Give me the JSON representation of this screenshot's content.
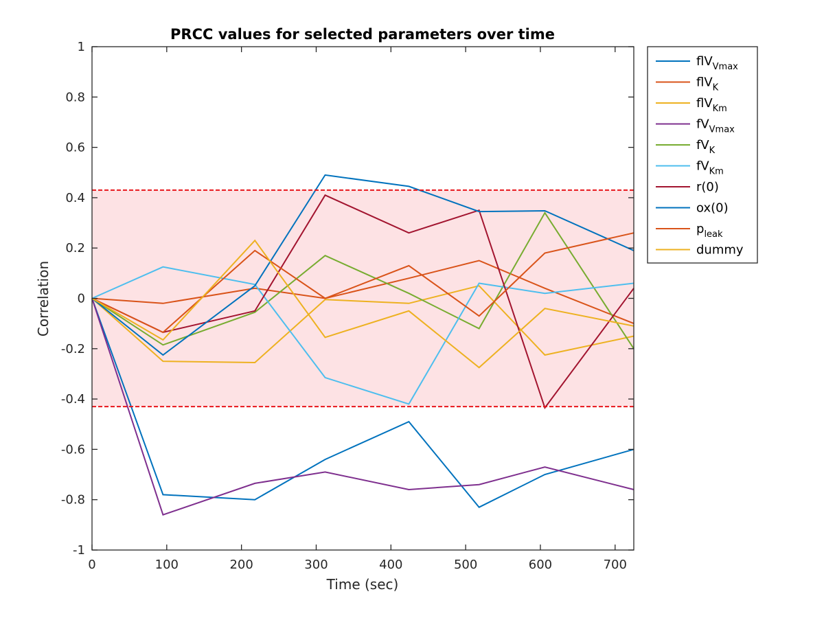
{
  "chart_data": {
    "type": "line",
    "title": "PRCC values for selected parameters over time",
    "xlabel": "Time (sec)",
    "ylabel": "Correlation",
    "xlim": [
      0,
      725
    ],
    "ylim": [
      -1,
      1
    ],
    "xticks": [
      0,
      100,
      200,
      300,
      400,
      500,
      600,
      700
    ],
    "yticks": [
      -1,
      -0.8,
      -0.6,
      -0.4,
      -0.2,
      0,
      0.2,
      0.4,
      0.6,
      0.8,
      1
    ],
    "xtick_labels": [
      "0",
      "100",
      "200",
      "300",
      "400",
      "500",
      "600",
      "700"
    ],
    "ytick_labels": [
      "-1",
      "-0.8",
      "-0.6",
      "-0.4",
      "-0.2",
      "0",
      "0.2",
      "0.4",
      "0.6",
      "0.8",
      "1"
    ],
    "x": [
      0,
      95,
      218,
      312,
      424,
      518,
      606,
      725
    ],
    "significance_band": {
      "lower": -0.43,
      "upper": 0.43,
      "fill_color": "#fde2e4",
      "line_color": "#e8161b"
    },
    "legend_position": "outside-top-right",
    "grid": false,
    "series": [
      {
        "name": "flV",
        "sub": "Vmax",
        "color": "#0072bd",
        "values": [
          0,
          -0.78,
          -0.8,
          -0.64,
          -0.49,
          -0.83,
          -0.7,
          -0.6
        ]
      },
      {
        "name": "flV",
        "sub": "K",
        "color": "#d95319",
        "values": [
          0,
          -0.02,
          0.04,
          0.0,
          0.08,
          0.15,
          0.04,
          -0.1
        ]
      },
      {
        "name": "flV",
        "sub": "Km",
        "color": "#edb120",
        "values": [
          0,
          -0.25,
          -0.255,
          -0.005,
          -0.02,
          0.05,
          -0.225,
          -0.15
        ]
      },
      {
        "name": "fV",
        "sub": "Vmax",
        "color": "#7e2f8e",
        "values": [
          0,
          -0.86,
          -0.735,
          -0.69,
          -0.76,
          -0.74,
          -0.67,
          -0.76
        ]
      },
      {
        "name": "fV",
        "sub": "K",
        "color": "#77ac30",
        "values": [
          0,
          -0.185,
          -0.055,
          0.17,
          0.02,
          -0.12,
          0.34,
          -0.2
        ]
      },
      {
        "name": "fV",
        "sub": "Km",
        "color": "#4dbeee",
        "values": [
          0,
          0.125,
          0.055,
          -0.315,
          -0.42,
          0.06,
          0.02,
          0.06
        ]
      },
      {
        "name": "r(0)",
        "sub": "",
        "color": "#a2142f",
        "values": [
          0,
          -0.135,
          -0.05,
          0.41,
          0.26,
          0.35,
          -0.435,
          0.04
        ]
      },
      {
        "name": "ox(0)",
        "sub": "",
        "color": "#0072bd",
        "values": [
          0,
          -0.225,
          0.05,
          0.49,
          0.445,
          0.345,
          0.348,
          0.19
        ]
      },
      {
        "name": "p",
        "sub": "leak",
        "color": "#d95319",
        "values": [
          0,
          -0.135,
          0.19,
          0.0,
          0.13,
          -0.07,
          0.18,
          0.26
        ]
      },
      {
        "name": "dummy",
        "sub": "",
        "color": "#edb120",
        "values": [
          0,
          -0.165,
          0.23,
          -0.155,
          -0.05,
          -0.275,
          -0.04,
          -0.11
        ]
      }
    ]
  }
}
